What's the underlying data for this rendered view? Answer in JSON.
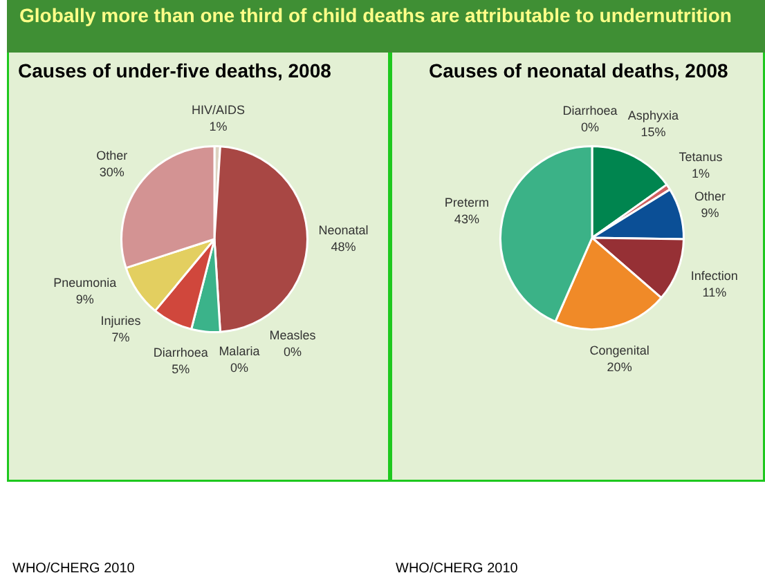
{
  "chart_data": [
    {
      "type": "pie",
      "title": "Causes of under-five deaths, 2008",
      "categories": [
        "HIV/AIDS",
        "Neonatal",
        "Measles",
        "Malaria",
        "Diarrhoea",
        "Injuries",
        "Pneumonia",
        "Other"
      ],
      "values": [
        1,
        48,
        0,
        0,
        5,
        7,
        9,
        30
      ],
      "colors": [
        "#ddd2c0",
        "#a84744",
        "#6a9fd4",
        "#8c6bb1",
        "#3bb38a",
        "#d0473c",
        "#e3cf60",
        "#d39393"
      ],
      "value_labels": [
        "1%",
        "48%",
        "0%",
        "0%",
        "5%",
        "7%",
        "9%",
        "30%"
      ],
      "legend": false,
      "annotations": [
        "Globally more than one third of child deaths are attributable to undernutrition",
        "WHO/CHERG 2010"
      ]
    },
    {
      "type": "pie",
      "title": "Causes of neonatal deaths, 2008",
      "categories": [
        "Diarrhoea",
        "Asphyxia",
        "Tetanus",
        "Other",
        "Infection",
        "Congenital",
        "Preterm"
      ],
      "values": [
        0,
        15,
        1,
        9,
        11,
        20,
        43
      ],
      "colors": [
        "#7a7a7a",
        "#00854f",
        "#d06060",
        "#0b4f96",
        "#963035",
        "#f08a28",
        "#3bb287"
      ],
      "value_labels": [
        "0%",
        "15%",
        "1%",
        "9%",
        "11%",
        "20%",
        "43%"
      ],
      "legend": false,
      "annotations": [
        "WHO/CHERG 2010"
      ]
    }
  ]
}
